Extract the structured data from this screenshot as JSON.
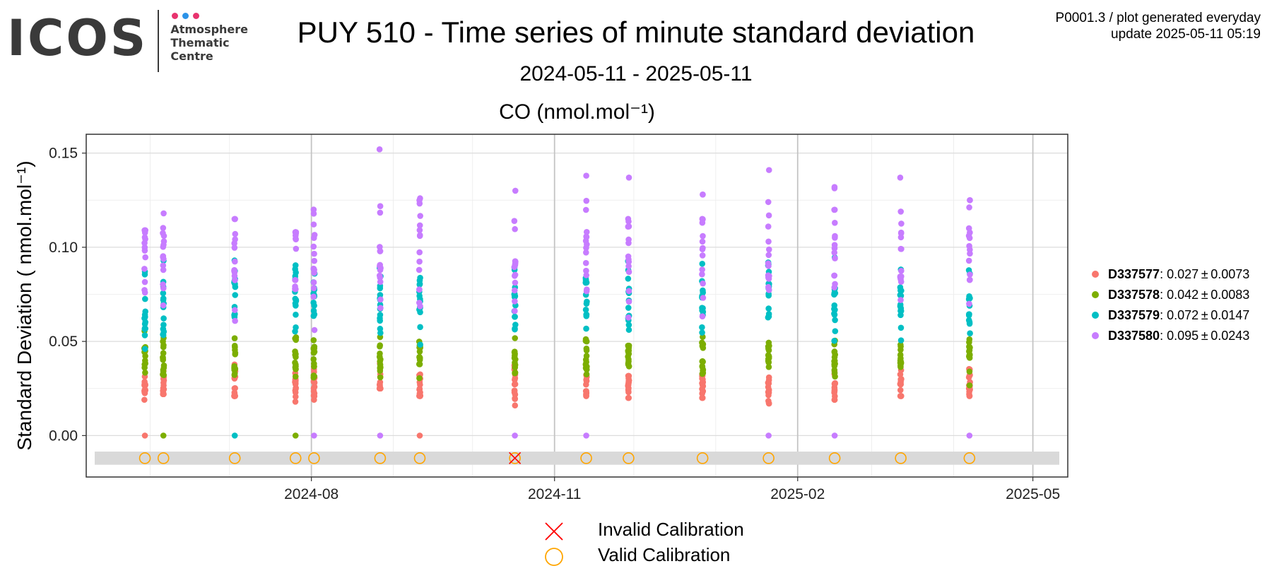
{
  "logo": {
    "word": "ICOS",
    "lines": [
      "Atmosphere",
      "Thematic",
      "Centre"
    ],
    "dot_colors": [
      "#e8336e",
      "#2b93e8",
      "#e8336e"
    ]
  },
  "header": {
    "title": "PUY 510 - Time series of minute standard deviation",
    "subtitle": "2024-05-11 - 2025-05-11",
    "info_line1": "P0001.3 / plot generated everyday",
    "info_line2": "update  2025-05-11 05:19"
  },
  "chart_data": {
    "type": "scatter",
    "title": "CO (nmol.mol⁻¹)",
    "ylabel": "Standard Deviation ( nmol.mol⁻¹)",
    "xlabel": "",
    "xlim": [
      "2024-05-11",
      "2025-05-11"
    ],
    "ylim": [
      -0.022,
      0.16
    ],
    "x_ticks": [
      "2024-08-01",
      "2024-11-01",
      "2025-02-01",
      "2025-05-01"
    ],
    "x_tick_labels": [
      "2024-08",
      "2024-11",
      "2025-02",
      "2025-05"
    ],
    "y_ticks": [
      0.0,
      0.05,
      0.1,
      0.15
    ],
    "y_tick_labels": [
      "0.00",
      "0.05",
      "0.10",
      "0.15"
    ],
    "grid": true,
    "legend_position": "right",
    "series": [
      {
        "name": "D337577",
        "stats": ": 0.027 ± 0.0073",
        "color": "#f8766d",
        "mean": 0.027,
        "sd": 0.0073
      },
      {
        "name": "D337578",
        "stats": ": 0.042 ± 0.0083",
        "color": "#7cae00",
        "mean": 0.042,
        "sd": 0.0083
      },
      {
        "name": "D337579",
        "stats": ": 0.072 ± 0.0147",
        "color": "#00bfc4",
        "mean": 0.072,
        "sd": 0.0147
      },
      {
        "name": "D337580",
        "stats": ": 0.095 ± 0.0243",
        "color": "#c77cff",
        "mean": 0.095,
        "sd": 0.0243
      }
    ],
    "calibrations": [
      {
        "date": "2024-05-30",
        "min": 0.019,
        "max": 0.109,
        "zero": "D337577",
        "valid": true
      },
      {
        "date": "2024-06-06",
        "min": 0.022,
        "max": 0.118,
        "zero": "D337578",
        "valid": true
      },
      {
        "date": "2024-07-03",
        "min": 0.021,
        "max": 0.115,
        "zero": "D337579",
        "valid": true
      },
      {
        "date": "2024-07-26",
        "min": 0.018,
        "max": 0.108,
        "zero": "D337578",
        "valid": true
      },
      {
        "date": "2024-08-02",
        "min": 0.019,
        "max": 0.12,
        "zero": "D337580",
        "valid": true
      },
      {
        "date": "2024-08-27",
        "min": 0.025,
        "max": 0.152,
        "zero": "D337580",
        "valid": true
      },
      {
        "date": "2024-09-11",
        "min": 0.021,
        "max": 0.126,
        "zero": "D337577",
        "valid": true
      },
      {
        "date": "2024-10-17",
        "min": 0.016,
        "max": 0.13,
        "zero": "D337580",
        "valid": false
      },
      {
        "date": "2024-11-13",
        "min": 0.021,
        "max": 0.138,
        "zero": "D337580",
        "valid": true
      },
      {
        "date": "2024-11-29",
        "min": 0.02,
        "max": 0.137,
        "zero": null,
        "valid": true
      },
      {
        "date": "2024-12-27",
        "min": 0.02,
        "max": 0.128,
        "zero": null,
        "valid": true
      },
      {
        "date": "2025-01-21",
        "min": 0.017,
        "max": 0.141,
        "zero": "D337580",
        "valid": true
      },
      {
        "date": "2025-02-15",
        "min": 0.019,
        "max": 0.132,
        "zero": "D337580",
        "valid": true
      },
      {
        "date": "2025-03-12",
        "min": 0.021,
        "max": 0.137,
        "zero": null,
        "valid": true
      },
      {
        "date": "2025-04-07",
        "min": 0.021,
        "max": 0.125,
        "zero": "D337580",
        "valid": true
      }
    ]
  },
  "calib_legend": {
    "invalid_label": "Invalid Calibration",
    "valid_label": "Valid Calibration",
    "invalid_color": "#ff0000",
    "valid_color": "#ffa500"
  }
}
